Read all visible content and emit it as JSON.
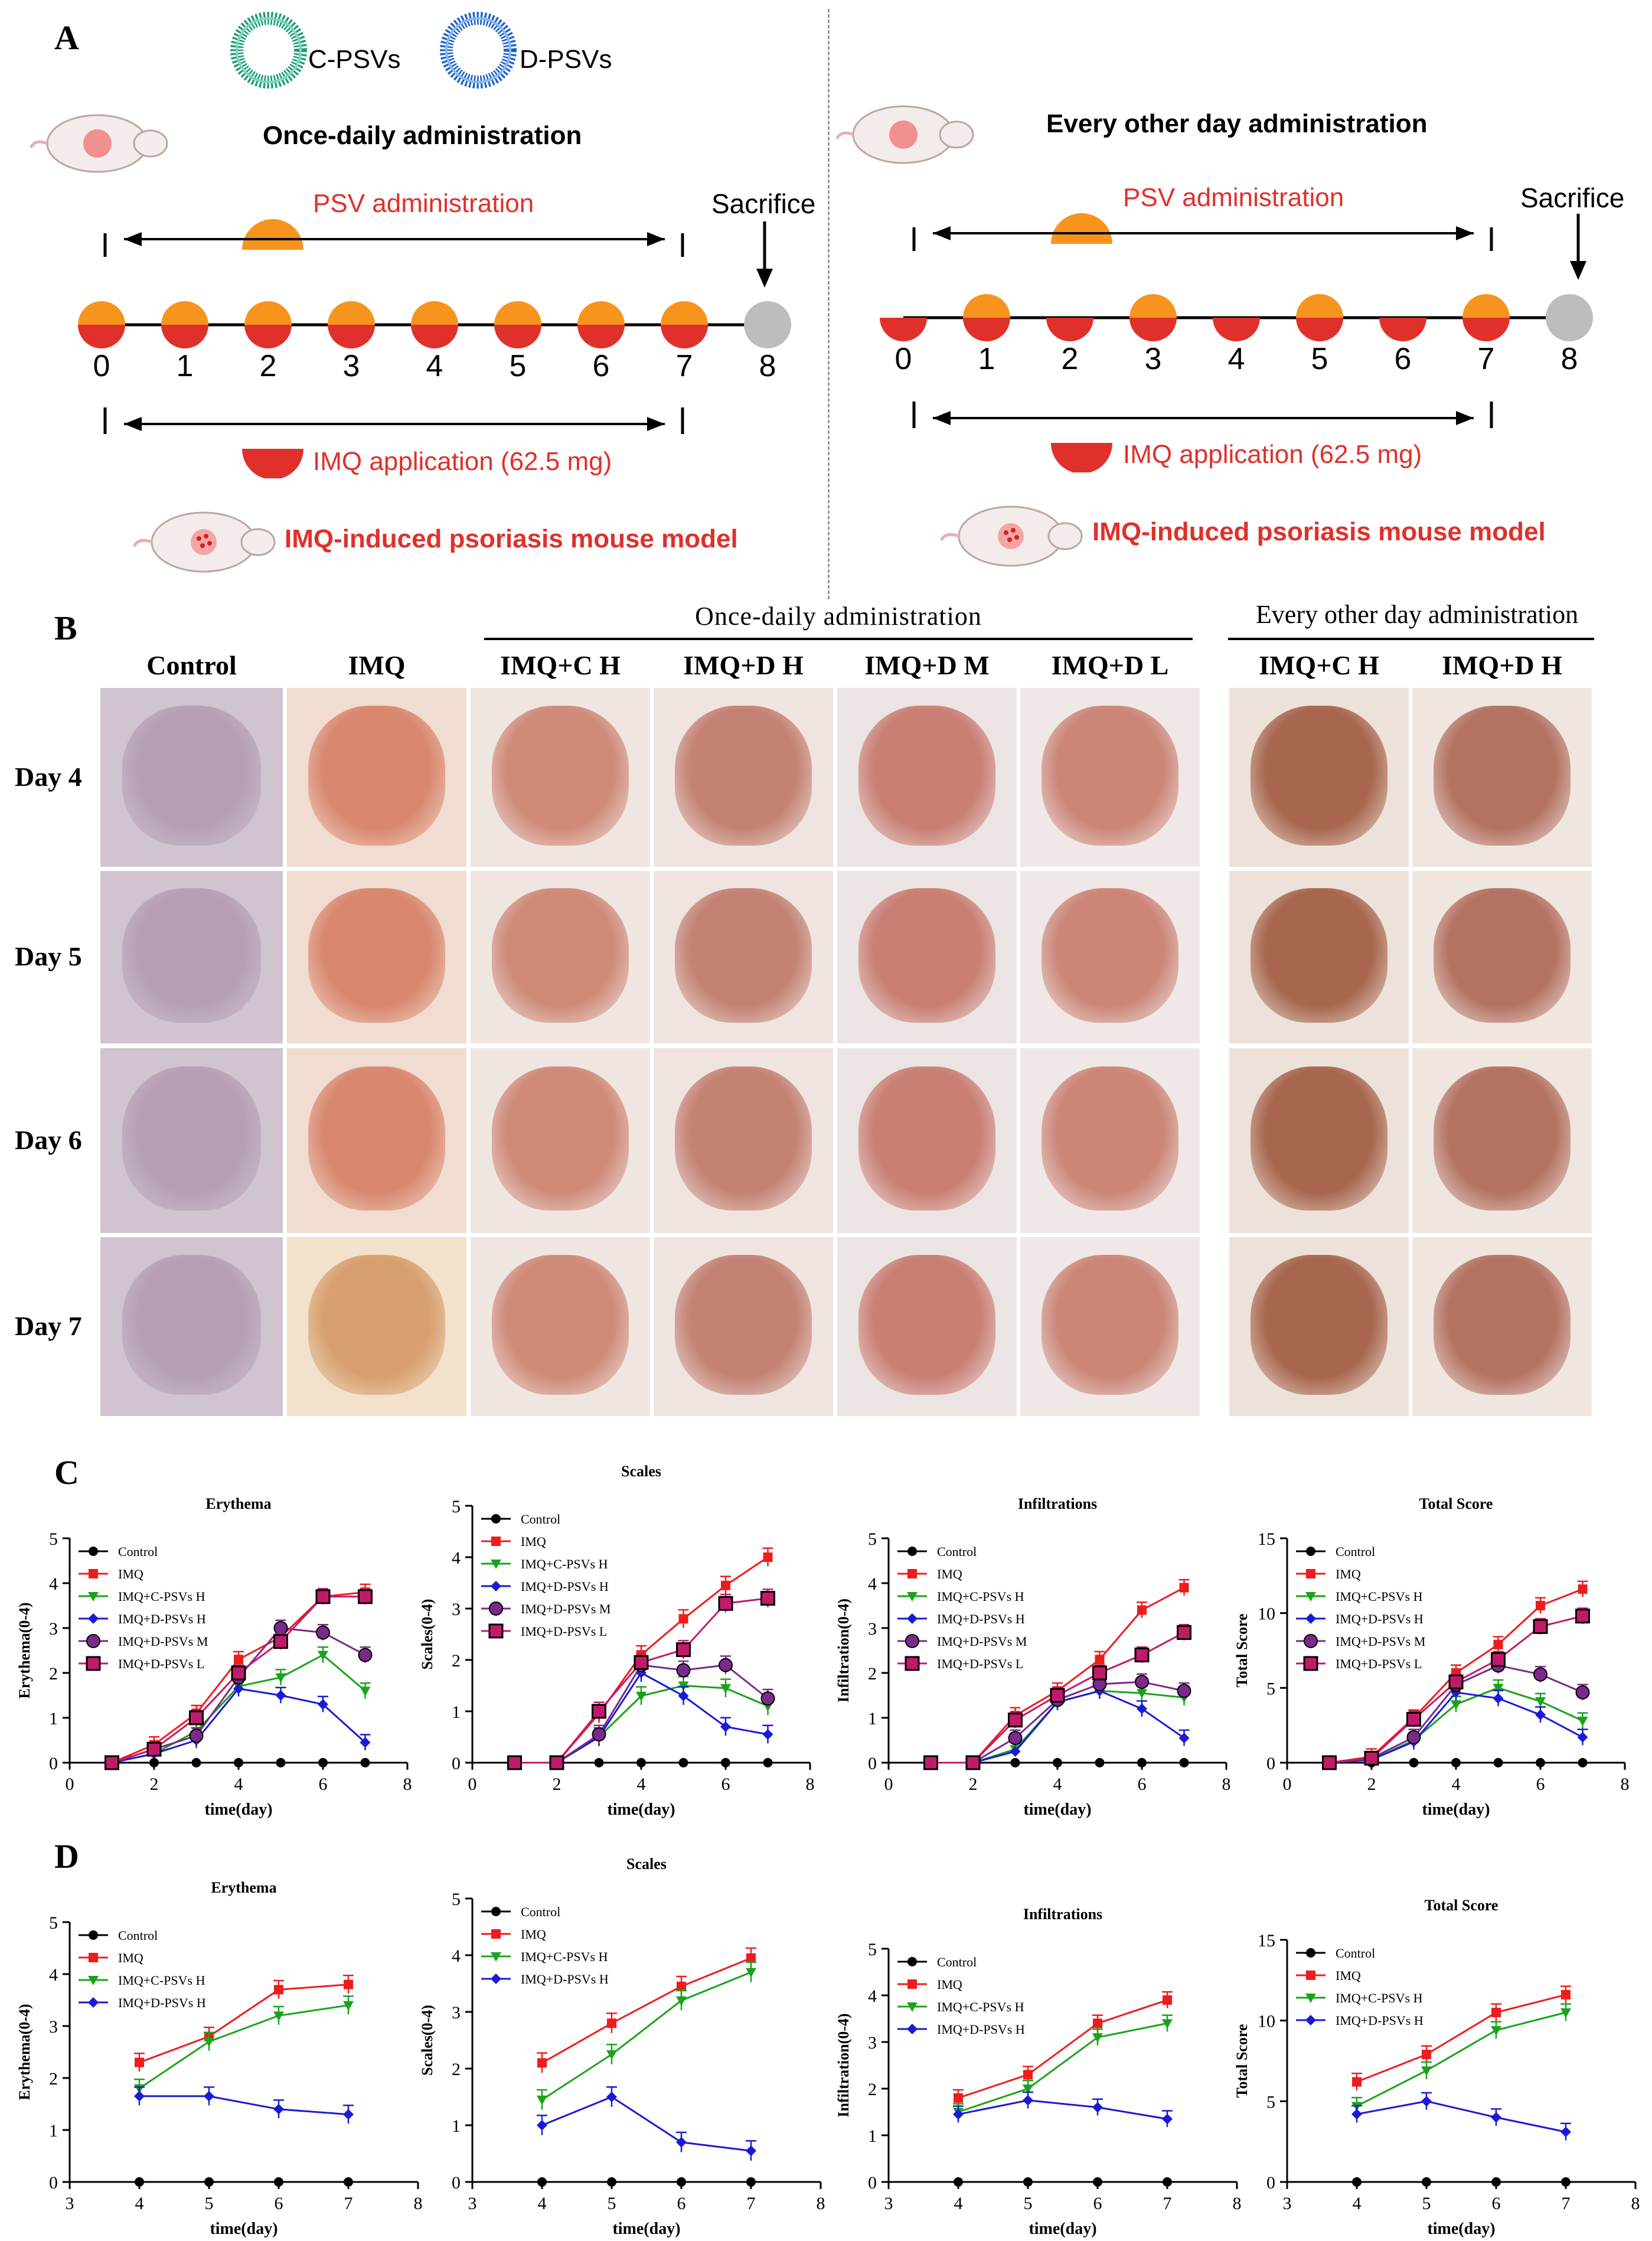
{
  "panelA": {
    "letter": "A",
    "legend": {
      "c_psvs": "C-PSVs",
      "d_psvs": "D-PSVs"
    },
    "left": {
      "title": "Once-daily administration",
      "psv_label": "PSV administration",
      "imq_label": "IMQ application (62.5 mg)",
      "sacrifice": "Sacrifice",
      "model_label": "IMQ-induced psoriasis mouse model",
      "days": [
        "0",
        "1",
        "2",
        "3",
        "4",
        "5",
        "6",
        "7",
        "8"
      ]
    },
    "right": {
      "title": "Every other day administration",
      "psv_label": "PSV administration",
      "imq_label": "IMQ application (62.5 mg)",
      "sacrifice": "Sacrifice",
      "model_label": "IMQ-induced psoriasis mouse model",
      "days": [
        "0",
        "1",
        "2",
        "3",
        "4",
        "5",
        "6",
        "7",
        "8"
      ]
    }
  },
  "panelB": {
    "letter": "B",
    "group_once": "Once-daily administration",
    "group_eod": "Every other day administration",
    "columns": [
      "Control",
      "IMQ",
      "IMQ+C H",
      "IMQ+D H",
      "IMQ+D M",
      "IMQ+D L",
      "IMQ+C H",
      "IMQ+D H"
    ],
    "rows": [
      "Day 4",
      "Day 5",
      "Day 6",
      "Day 7"
    ]
  },
  "panelC": {
    "letter": "C"
  },
  "panelD": {
    "letter": "D"
  },
  "colors": {
    "control": "#000000",
    "imq": "#ee1c1c",
    "cpsv": "#1aa31a",
    "dpsv_h": "#1a1ad6",
    "dpsv_m": "#7a2a8a",
    "dpsv_l": "#c21a6a",
    "orange": "#f7941d",
    "red": "#e0302b",
    "grey": "#bdbdbd"
  },
  "chart_data": [
    {
      "id": "C-erythema",
      "type": "line",
      "title": "Erythema",
      "xlabel": "time(day)",
      "ylabel": "Erythema(0-4)",
      "xlim": [
        0,
        8
      ],
      "ylim": [
        0,
        5
      ],
      "xticks": [
        0,
        2,
        4,
        6,
        8
      ],
      "yticks": [
        0,
        1,
        2,
        3,
        4,
        5
      ],
      "series": [
        {
          "name": "Control",
          "x": [
            1,
            2,
            3,
            4,
            5,
            6,
            7
          ],
          "y": [
            0,
            0,
            0,
            0,
            0,
            0,
            0
          ]
        },
        {
          "name": "IMQ",
          "x": [
            1,
            2,
            3,
            4,
            5,
            6,
            7
          ],
          "y": [
            0,
            0.4,
            1.1,
            2.3,
            2.8,
            3.7,
            3.8
          ]
        },
        {
          "name": "IMQ+C-PSVs H",
          "x": [
            1,
            2,
            3,
            4,
            5,
            6,
            7
          ],
          "y": [
            0,
            0.2,
            0.7,
            1.7,
            1.9,
            2.4,
            1.6
          ]
        },
        {
          "name": "IMQ+D-PSVs H",
          "x": [
            1,
            2,
            3,
            4,
            5,
            6,
            7
          ],
          "y": [
            0,
            0.2,
            0.5,
            1.65,
            1.5,
            1.3,
            0.45
          ]
        },
        {
          "name": "IMQ+D-PSVs M",
          "x": [
            1,
            2,
            3,
            4,
            5,
            6,
            7
          ],
          "y": [
            0,
            0.3,
            0.6,
            1.9,
            3.0,
            2.9,
            2.4
          ]
        },
        {
          "name": "IMQ+D-PSVs L",
          "x": [
            1,
            2,
            3,
            4,
            5,
            6,
            7
          ],
          "y": [
            0,
            0.3,
            1.0,
            2.0,
            2.7,
            3.7,
            3.7
          ]
        }
      ]
    },
    {
      "id": "C-scales",
      "type": "line",
      "title": "Scales",
      "xlabel": "time(day)",
      "ylabel": "Scales(0-4)",
      "xlim": [
        0,
        8
      ],
      "ylim": [
        0,
        5
      ],
      "xticks": [
        0,
        2,
        4,
        6,
        8
      ],
      "yticks": [
        0,
        1,
        2,
        3,
        4,
        5
      ],
      "series": [
        {
          "name": "Control",
          "x": [
            1,
            2,
            3,
            4,
            5,
            6,
            7
          ],
          "y": [
            0,
            0,
            0,
            0,
            0,
            0,
            0
          ]
        },
        {
          "name": "IMQ",
          "x": [
            1,
            2,
            3,
            4,
            5,
            6,
            7
          ],
          "y": [
            0,
            0,
            0.95,
            2.1,
            2.8,
            3.45,
            4.0
          ]
        },
        {
          "name": "IMQ+C-PSVs H",
          "x": [
            1,
            2,
            3,
            4,
            5,
            6,
            7
          ],
          "y": [
            0,
            0,
            0.5,
            1.3,
            1.5,
            1.45,
            1.1
          ]
        },
        {
          "name": "IMQ+D-PSVs H",
          "x": [
            1,
            2,
            3,
            4,
            5,
            6,
            7
          ],
          "y": [
            0,
            0,
            0.5,
            1.75,
            1.3,
            0.7,
            0.55
          ]
        },
        {
          "name": "IMQ+D-PSVs M",
          "x": [
            1,
            2,
            3,
            4,
            5,
            6,
            7
          ],
          "y": [
            0,
            0,
            0.55,
            1.9,
            1.8,
            1.9,
            1.25
          ]
        },
        {
          "name": "IMQ+D-PSVs L",
          "x": [
            1,
            2,
            3,
            4,
            5,
            6,
            7
          ],
          "y": [
            0,
            0,
            1.0,
            1.95,
            2.2,
            3.1,
            3.2
          ]
        }
      ]
    },
    {
      "id": "C-infiltrations",
      "type": "line",
      "title": "Infiltrations",
      "xlabel": "time(day)",
      "ylabel": "Infiltration(0-4)",
      "xlim": [
        0,
        8
      ],
      "ylim": [
        0,
        5
      ],
      "xticks": [
        0,
        2,
        4,
        6,
        8
      ],
      "yticks": [
        0,
        1,
        2,
        3,
        4,
        5
      ],
      "series": [
        {
          "name": "Control",
          "x": [
            1,
            2,
            3,
            4,
            5,
            6,
            7
          ],
          "y": [
            0,
            0,
            0,
            0,
            0,
            0,
            0
          ]
        },
        {
          "name": "IMQ",
          "x": [
            1,
            2,
            3,
            4,
            5,
            6,
            7
          ],
          "y": [
            0,
            0,
            1.05,
            1.6,
            2.3,
            3.4,
            3.9
          ]
        },
        {
          "name": "IMQ+C-PSVs H",
          "x": [
            1,
            2,
            3,
            4,
            5,
            6,
            7
          ],
          "y": [
            0,
            0,
            0.3,
            1.35,
            1.6,
            1.55,
            1.45
          ]
        },
        {
          "name": "IMQ+D-PSVs H",
          "x": [
            1,
            2,
            3,
            4,
            5,
            6,
            7
          ],
          "y": [
            0,
            0,
            0.25,
            1.35,
            1.6,
            1.2,
            0.55
          ]
        },
        {
          "name": "IMQ+D-PSVs M",
          "x": [
            1,
            2,
            3,
            4,
            5,
            6,
            7
          ],
          "y": [
            0,
            0,
            0.55,
            1.4,
            1.75,
            1.8,
            1.6
          ]
        },
        {
          "name": "IMQ+D-PSVs L",
          "x": [
            1,
            2,
            3,
            4,
            5,
            6,
            7
          ],
          "y": [
            0,
            0,
            0.95,
            1.5,
            2.0,
            2.4,
            2.9
          ]
        }
      ]
    },
    {
      "id": "C-total",
      "type": "line",
      "title": "Total Score",
      "xlabel": "time(day)",
      "ylabel": "Total Score",
      "xlim": [
        0,
        8
      ],
      "ylim": [
        0,
        15
      ],
      "xticks": [
        0,
        2,
        4,
        6,
        8
      ],
      "yticks": [
        0,
        5,
        10,
        15
      ],
      "series": [
        {
          "name": "Control",
          "x": [
            1,
            2,
            3,
            4,
            5,
            6,
            7
          ],
          "y": [
            0,
            0,
            0,
            0,
            0,
            0,
            0
          ]
        },
        {
          "name": "IMQ",
          "x": [
            1,
            2,
            3,
            4,
            5,
            6,
            7
          ],
          "y": [
            0,
            0.4,
            3.0,
            6.0,
            7.9,
            10.5,
            11.6
          ]
        },
        {
          "name": "IMQ+C-PSVs H",
          "x": [
            1,
            2,
            3,
            4,
            5,
            6,
            7
          ],
          "y": [
            0,
            0.2,
            1.5,
            3.9,
            5.0,
            4.1,
            2.8
          ]
        },
        {
          "name": "IMQ+D-PSVs H",
          "x": [
            1,
            2,
            3,
            4,
            5,
            6,
            7
          ],
          "y": [
            0,
            0.2,
            1.4,
            4.7,
            4.3,
            3.2,
            1.7
          ]
        },
        {
          "name": "IMQ+D-PSVs M",
          "x": [
            1,
            2,
            3,
            4,
            5,
            6,
            7
          ],
          "y": [
            0,
            0.3,
            1.7,
            5.2,
            6.5,
            5.9,
            4.7
          ]
        },
        {
          "name": "IMQ+D-PSVs L",
          "x": [
            1,
            2,
            3,
            4,
            5,
            6,
            7
          ],
          "y": [
            0,
            0.3,
            2.9,
            5.4,
            6.9,
            9.1,
            9.8
          ]
        }
      ]
    },
    {
      "id": "D-erythema",
      "type": "line",
      "title": "Erythema",
      "xlabel": "time(day)",
      "ylabel": "Erythema(0-4)",
      "xlim": [
        3,
        8
      ],
      "ylim": [
        0,
        5
      ],
      "xticks": [
        3,
        4,
        5,
        6,
        7,
        8
      ],
      "yticks": [
        0,
        1,
        2,
        3,
        4,
        5
      ],
      "series": [
        {
          "name": "Control",
          "x": [
            4,
            5,
            6,
            7
          ],
          "y": [
            0,
            0,
            0,
            0
          ]
        },
        {
          "name": "IMQ",
          "x": [
            4,
            5,
            6,
            7
          ],
          "y": [
            2.3,
            2.8,
            3.7,
            3.8
          ]
        },
        {
          "name": "IMQ+C-PSVs H",
          "x": [
            4,
            5,
            6,
            7
          ],
          "y": [
            1.8,
            2.7,
            3.2,
            3.4
          ]
        },
        {
          "name": "IMQ+D-PSVs H",
          "x": [
            4,
            5,
            6,
            7
          ],
          "y": [
            1.65,
            1.65,
            1.4,
            1.3
          ]
        }
      ]
    },
    {
      "id": "D-scales",
      "type": "line",
      "title": "Scales",
      "xlabel": "time(day)",
      "ylabel": "Scales(0-4)",
      "xlim": [
        3,
        8
      ],
      "ylim": [
        0,
        5
      ],
      "xticks": [
        3,
        4,
        5,
        6,
        7,
        8
      ],
      "yticks": [
        0,
        1,
        2,
        3,
        4,
        5
      ],
      "series": [
        {
          "name": "Control",
          "x": [
            4,
            5,
            6,
            7
          ],
          "y": [
            0,
            0,
            0,
            0
          ]
        },
        {
          "name": "IMQ",
          "x": [
            4,
            5,
            6,
            7
          ],
          "y": [
            2.1,
            2.8,
            3.45,
            3.95
          ]
        },
        {
          "name": "IMQ+C-PSVs H",
          "x": [
            4,
            5,
            6,
            7
          ],
          "y": [
            1.45,
            2.25,
            3.2,
            3.7
          ]
        },
        {
          "name": "IMQ+D-PSVs H",
          "x": [
            4,
            5,
            6,
            7
          ],
          "y": [
            1.0,
            1.5,
            0.7,
            0.55
          ]
        }
      ]
    },
    {
      "id": "D-infiltrations",
      "type": "line",
      "title": "Infiltrations",
      "xlabel": "time(day)",
      "ylabel": "Infiltration(0-4)",
      "xlim": [
        3,
        8
      ],
      "ylim": [
        0,
        5
      ],
      "xticks": [
        3,
        4,
        5,
        6,
        7,
        8
      ],
      "yticks": [
        0,
        1,
        2,
        3,
        4,
        5
      ],
      "series": [
        {
          "name": "Control",
          "x": [
            4,
            5,
            6,
            7
          ],
          "y": [
            0,
            0,
            0,
            0
          ]
        },
        {
          "name": "IMQ",
          "x": [
            4,
            5,
            6,
            7
          ],
          "y": [
            1.8,
            2.3,
            3.4,
            3.9
          ]
        },
        {
          "name": "IMQ+C-PSVs H",
          "x": [
            4,
            5,
            6,
            7
          ],
          "y": [
            1.5,
            2.0,
            3.1,
            3.4
          ]
        },
        {
          "name": "IMQ+D-PSVs H",
          "x": [
            4,
            5,
            6,
            7
          ],
          "y": [
            1.45,
            1.75,
            1.6,
            1.35
          ]
        }
      ]
    },
    {
      "id": "D-total",
      "type": "line",
      "title": "Total Score",
      "xlabel": "time(day)",
      "ylabel": "Total Score",
      "xlim": [
        3,
        8
      ],
      "ylim": [
        0,
        15
      ],
      "xticks": [
        3,
        4,
        5,
        6,
        7,
        8
      ],
      "yticks": [
        0,
        5,
        10,
        15
      ],
      "series": [
        {
          "name": "Control",
          "x": [
            4,
            5,
            6,
            7
          ],
          "y": [
            0,
            0,
            0,
            0
          ]
        },
        {
          "name": "IMQ",
          "x": [
            4,
            5,
            6,
            7
          ],
          "y": [
            6.2,
            7.9,
            10.5,
            11.6
          ]
        },
        {
          "name": "IMQ+C-PSVs H",
          "x": [
            4,
            5,
            6,
            7
          ],
          "y": [
            4.7,
            6.9,
            9.4,
            10.5
          ]
        },
        {
          "name": "IMQ+D-PSVs H",
          "x": [
            4,
            5,
            6,
            7
          ],
          "y": [
            4.2,
            5.0,
            4.0,
            3.1
          ]
        }
      ]
    }
  ]
}
